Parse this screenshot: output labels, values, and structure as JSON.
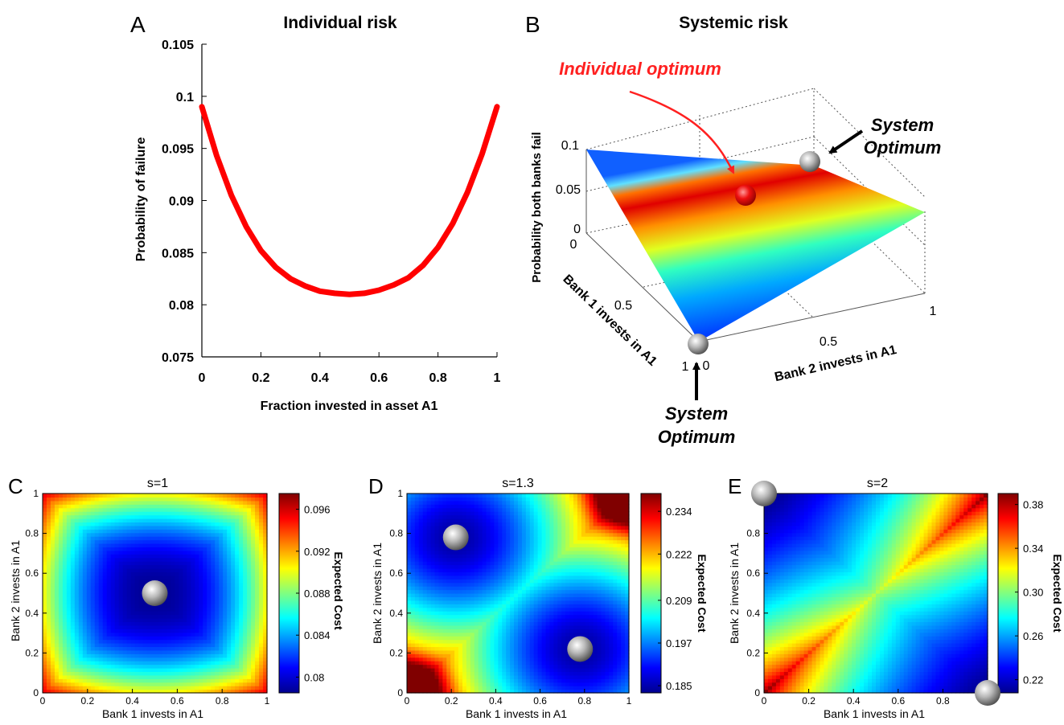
{
  "panels": {
    "A": {
      "letter": "A",
      "title": "Individual risk"
    },
    "B": {
      "letter": "B",
      "title": "Systemic risk"
    },
    "C": {
      "letter": "C",
      "title": "s=1"
    },
    "D": {
      "letter": "D",
      "title": "s=1.3"
    },
    "E": {
      "letter": "E",
      "title": "s=2"
    }
  },
  "colors": {
    "curve": "#ff0000",
    "annotation_red": "#ff2020",
    "arrow_black": "#000000"
  },
  "chart_data": [
    {
      "id": "A",
      "type": "line",
      "title": "Individual risk",
      "xlabel": "Fraction invested in asset A1",
      "ylabel": "Probability of failure",
      "xlim": [
        0,
        1
      ],
      "ylim": [
        0.075,
        0.105
      ],
      "xticks": [
        "0",
        "0.2",
        "0.4",
        "0.6",
        "0.8",
        "1"
      ],
      "yticks": [
        "0.075",
        "0.08",
        "0.085",
        "0.09",
        "0.095",
        "0.1",
        "0.105"
      ],
      "x": [
        0,
        0.05,
        0.1,
        0.15,
        0.2,
        0.25,
        0.3,
        0.35,
        0.4,
        0.45,
        0.5,
        0.55,
        0.6,
        0.65,
        0.7,
        0.75,
        0.8,
        0.85,
        0.9,
        0.95,
        1
      ],
      "y": [
        0.099,
        0.0943,
        0.0905,
        0.0875,
        0.0852,
        0.0836,
        0.0825,
        0.0818,
        0.0813,
        0.0811,
        0.081,
        0.0811,
        0.0814,
        0.0819,
        0.0826,
        0.0838,
        0.0855,
        0.0878,
        0.0908,
        0.0945,
        0.099
      ]
    },
    {
      "id": "B",
      "type": "surface",
      "title": "Systemic risk",
      "zlabel": "Probability both banks fail",
      "xlabel": "Bank 2 invests in A1",
      "ylabel": "Bank 1 invests in A1",
      "zticks": [
        "0",
        "0.05",
        "0.1"
      ],
      "xticks": [
        "0",
        "0.5",
        "1"
      ],
      "yticks": [
        "0",
        "0.5",
        "1"
      ],
      "annotations": [
        "Individual optimum",
        "System Optimum",
        "System Optimum"
      ],
      "points": [
        {
          "label": "Individual optimum",
          "x": 0.5,
          "y": 0.5,
          "z": 0.066
        },
        {
          "label": "System Optimum",
          "x": 0,
          "y": 1,
          "z": 0
        },
        {
          "label": "System Optimum",
          "x": 1,
          "y": 0,
          "z": 0
        }
      ]
    },
    {
      "id": "C",
      "type": "heatmap",
      "title": "s=1",
      "xlabel": "Bank 1 invests in A1",
      "ylabel": "Bank 2 invests in A1",
      "colorbar_label": "Expected Cost",
      "xticks": [
        "0",
        "0.2",
        "0.4",
        "0.6",
        "0.8",
        "1"
      ],
      "yticks": [
        "0",
        "0.2",
        "0.4",
        "0.6",
        "0.8",
        "1"
      ],
      "colorbar_ticks": [
        "0.096",
        "0.092",
        "0.088",
        "0.084",
        "0.08"
      ],
      "crange": [
        0.0785,
        0.0975
      ],
      "optima": [
        {
          "x": 0.5,
          "y": 0.5
        }
      ]
    },
    {
      "id": "D",
      "type": "heatmap",
      "title": "s=1.3",
      "xlabel": "Bank 1 invests in A1",
      "ylabel": "Bank 2 invests in A1",
      "colorbar_label": "Expected Cost",
      "xticks": [
        "0",
        "0.2",
        "0.4",
        "0.6",
        "0.8",
        "1"
      ],
      "yticks": [
        "0",
        "0.2",
        "0.4",
        "0.6",
        "0.8",
        "1"
      ],
      "colorbar_ticks": [
        "0.234",
        "0.222",
        "0.209",
        "0.197",
        "0.185"
      ],
      "crange": [
        0.183,
        0.239
      ],
      "optima": [
        {
          "x": 0.22,
          "y": 0.78
        },
        {
          "x": 0.78,
          "y": 0.22
        }
      ]
    },
    {
      "id": "E",
      "type": "heatmap",
      "title": "s=2",
      "xlabel": "Bank 1 invests in A1",
      "ylabel": "Bank 2 invests in A1",
      "colorbar_label": "Expected Cost",
      "xticks": [
        "0",
        "0.2",
        "0.4",
        "0.6",
        "0.8"
      ],
      "yticks": [
        "0",
        "0.2",
        "0.4",
        "0.6",
        "0.8"
      ],
      "colorbar_ticks": [
        "0.38",
        "0.34",
        "0.30",
        "0.26",
        "0.22"
      ],
      "crange": [
        0.208,
        0.39
      ],
      "optima": [
        {
          "x": 0,
          "y": 1
        },
        {
          "x": 1,
          "y": 0
        }
      ]
    }
  ]
}
